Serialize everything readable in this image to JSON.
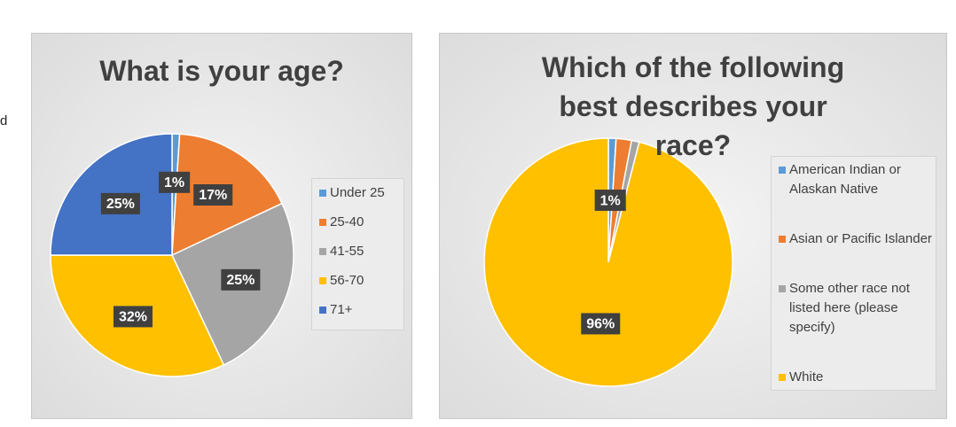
{
  "fragment": "d",
  "chart_data": [
    {
      "type": "pie",
      "title": "What is your age?",
      "categories": [
        "Under 25",
        "25-40",
        "41-55",
        "56-70",
        "71+"
      ],
      "values": [
        1,
        17,
        25,
        32,
        25
      ],
      "value_labels": [
        "1%",
        "17%",
        "25%",
        "32%",
        "25%"
      ],
      "colors": [
        "#5b9bd5",
        "#ed7d31",
        "#a5a5a5",
        "#ffc000",
        "#4472c4"
      ]
    },
    {
      "type": "pie",
      "title": "Which of the following best describes your race?",
      "categories": [
        "American Indian or Alaskan Native",
        "Asian or Pacific Islander",
        "Some other race not listed here (please specify)",
        "White"
      ],
      "values": [
        1,
        2,
        1,
        96
      ],
      "value_labels": [
        "1%",
        null,
        null,
        "96%"
      ],
      "colors": [
        "#5b9bd5",
        "#ed7d31",
        "#a5a5a5",
        "#ffc000"
      ]
    }
  ]
}
